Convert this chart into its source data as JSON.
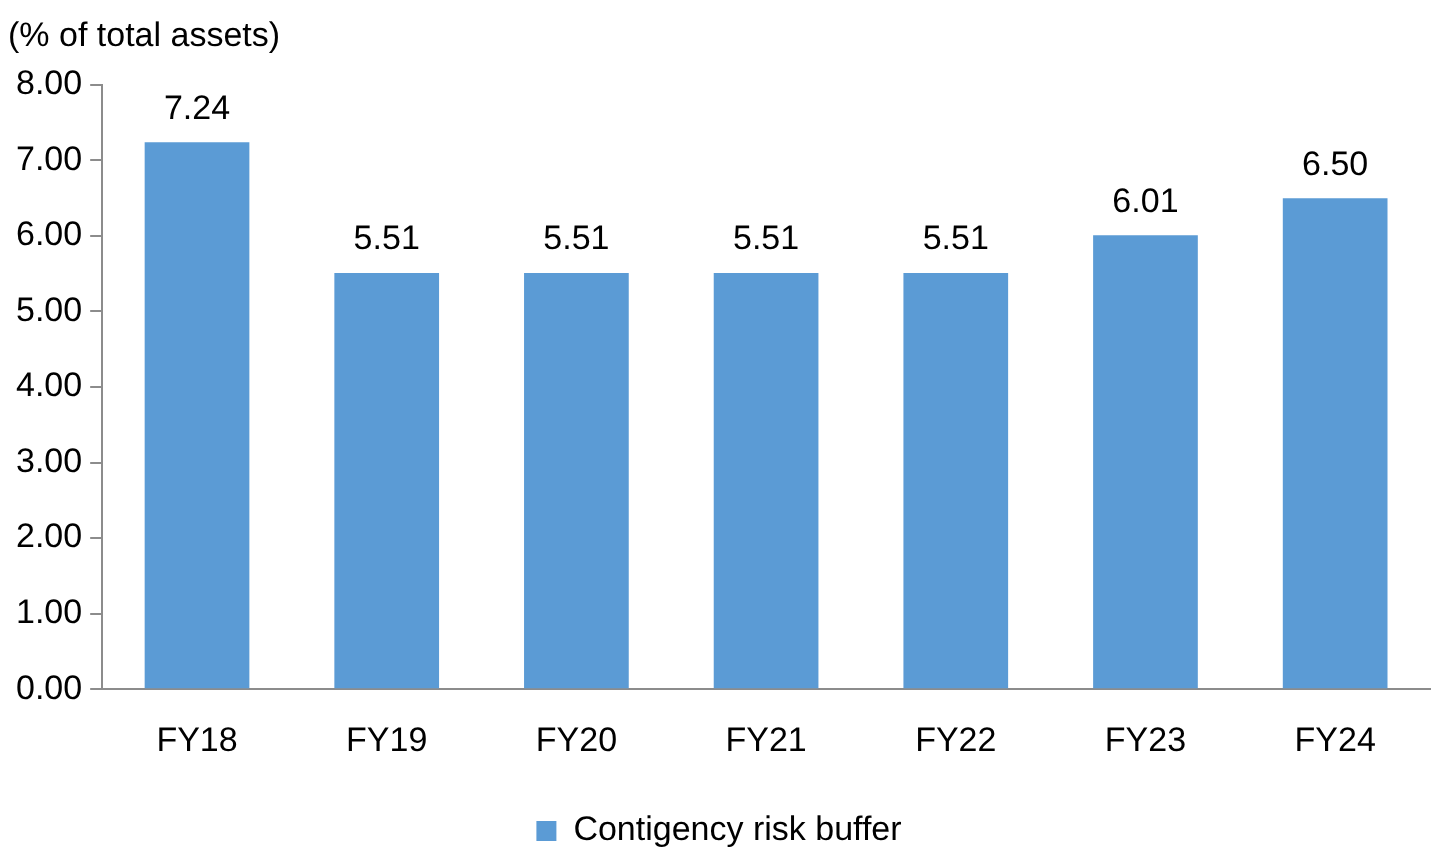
{
  "chart_data": {
    "type": "bar",
    "ylabel": "(% of total assets)",
    "categories": [
      "FY18",
      "FY19",
      "FY20",
      "FY21",
      "FY22",
      "FY23",
      "FY24"
    ],
    "series": [
      {
        "name": "Contigency risk buffer",
        "color": "#5b9bd5",
        "values": [
          7.24,
          5.51,
          5.51,
          5.51,
          5.51,
          6.01,
          6.5
        ],
        "value_labels": [
          "7.24",
          "5.51",
          "5.51",
          "5.51",
          "5.51",
          "6.01",
          "6.50"
        ]
      }
    ],
    "ylim": [
      0,
      8
    ],
    "yticks": [
      {
        "value": 0,
        "label": "0.00"
      },
      {
        "value": 1,
        "label": "1.00"
      },
      {
        "value": 2,
        "label": "2.00"
      },
      {
        "value": 3,
        "label": "3.00"
      },
      {
        "value": 4,
        "label": "4.00"
      },
      {
        "value": 5,
        "label": "5.00"
      },
      {
        "value": 6,
        "label": "6.00"
      },
      {
        "value": 7,
        "label": "7.00"
      },
      {
        "value": 8,
        "label": "8.00"
      }
    ],
    "grid": false,
    "legend": "bottom"
  }
}
